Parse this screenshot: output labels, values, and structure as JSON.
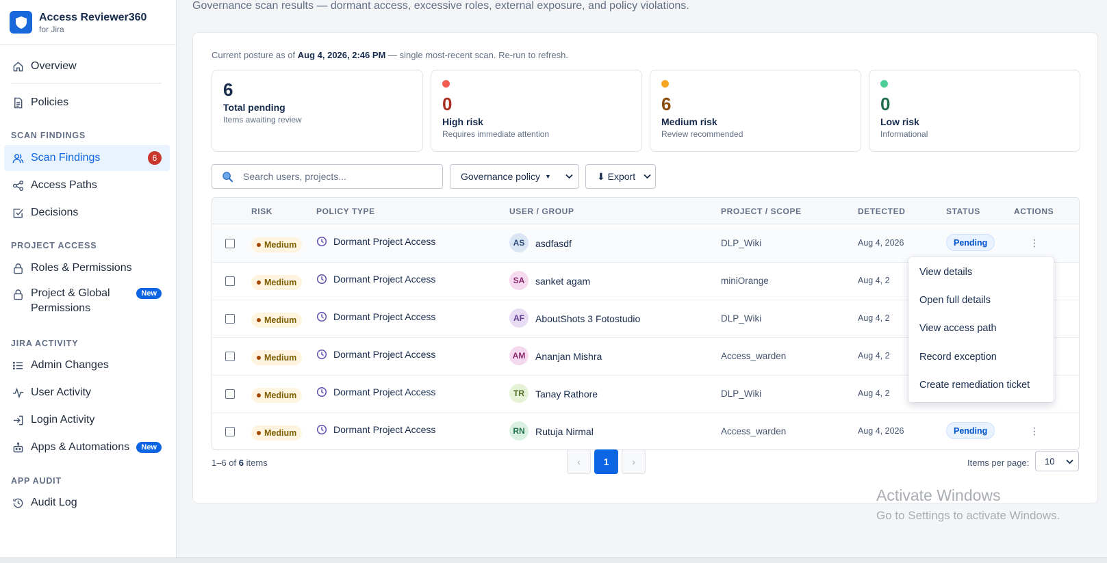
{
  "app": {
    "title": "Access Reviewer360",
    "subtitle": "for Jira"
  },
  "sidebar": {
    "overview": "Overview",
    "policies": "Policies",
    "sections": {
      "scan_findings": "SCAN FINDINGS",
      "project_access": "PROJECT ACCESS",
      "jira_activity": "JIRA ACTIVITY",
      "app_audit": "APP AUDIT"
    },
    "scan_findings": {
      "label": "Scan Findings",
      "count": "6"
    },
    "access_paths": "Access Paths",
    "decisions": "Decisions",
    "roles_permissions": "Roles & Permissions",
    "project_global_line1": "Project & Global",
    "project_global_line2": "Permissions",
    "new_badge": "New",
    "admin_changes": "Admin Changes",
    "user_activity": "User Activity",
    "login_activity": "Login Activity",
    "apps_automations": "Apps & Automations",
    "audit_log": "Audit Log"
  },
  "header": {
    "subtitle": "Governance scan results — dormant access, excessive roles, external exposure, and policy violations."
  },
  "posture": {
    "prefix": "Current posture as of",
    "timestamp": "Aug 4, 2026, 2:46 PM",
    "suffix": "— single most-recent scan. Re-run to refresh."
  },
  "stats": [
    {
      "value": "6",
      "label": "Total pending",
      "desc": "Items awaiting review",
      "color": "#172b4d",
      "dot": ""
    },
    {
      "value": "0",
      "label": "High risk",
      "desc": "Requires immediate attention",
      "color": "#ae2e24",
      "dot": "#f15b50"
    },
    {
      "value": "6",
      "label": "Medium risk",
      "desc": "Review recommended",
      "color": "#8a4b08",
      "dot": "#f5a623"
    },
    {
      "value": "0",
      "label": "Low risk",
      "desc": "Informational",
      "color": "#216e4e",
      "dot": "#4bce97"
    }
  ],
  "toolbar": {
    "search_placeholder": "Search users, projects...",
    "policy_select": "Governance policy",
    "export": "⬇ Export"
  },
  "table": {
    "headers": [
      "RISK",
      "POLICY TYPE",
      "USER / GROUP",
      "PROJECT / SCOPE",
      "DETECTED",
      "STATUS",
      "ACTIONS"
    ],
    "rows": [
      {
        "risk": "Medium",
        "policy": "Dormant Project Access",
        "initials": "AS",
        "user": "asdfasdf",
        "project": "DLP_Wiki",
        "detected": "Aug 4, 2026",
        "status": "Pending",
        "av_bg": "#dbe6f5",
        "av_fg": "#2d4d7a"
      },
      {
        "risk": "Medium",
        "policy": "Dormant Project Access",
        "initials": "SA",
        "user": "sanket agam",
        "project": "miniOrange",
        "detected": "Aug 4, 2",
        "status": "",
        "av_bg": "#f5d9ee",
        "av_fg": "#8a2a6d"
      },
      {
        "risk": "Medium",
        "policy": "Dormant Project Access",
        "initials": "AF",
        "user": "AboutShots 3 Fotostudio",
        "project": "DLP_Wiki",
        "detected": "Aug 4, 2",
        "status": "",
        "av_bg": "#e8dcf5",
        "av_fg": "#5e3a8c"
      },
      {
        "risk": "Medium",
        "policy": "Dormant Project Access",
        "initials": "AM",
        "user": "Ananjan Mishra",
        "project": "Access_warden",
        "detected": "Aug 4, 2",
        "status": "",
        "av_bg": "#f5d9ee",
        "av_fg": "#8a2a6d"
      },
      {
        "risk": "Medium",
        "policy": "Dormant Project Access",
        "initials": "TR",
        "user": "Tanay Rathore",
        "project": "DLP_Wiki",
        "detected": "Aug 4, 2",
        "status": "",
        "av_bg": "#e6f2d6",
        "av_fg": "#4a6b1f"
      },
      {
        "risk": "Medium",
        "policy": "Dormant Project Access",
        "initials": "RN",
        "user": "Rutuja Nirmal",
        "project": "Access_warden",
        "detected": "Aug 4, 2026",
        "status": "Pending",
        "av_bg": "#d9f0e2",
        "av_fg": "#216e4e"
      }
    ]
  },
  "pagination": {
    "range": "1–6 of",
    "total": "6",
    "items_word": "items",
    "prev": "‹",
    "current": "1",
    "next": "›",
    "per_page_label": "Items per page:",
    "per_page": "10"
  },
  "row_menu": {
    "items": [
      "View details",
      "Open full details",
      "View access path",
      "Record exception",
      "Create remediation ticket"
    ]
  },
  "watermark": {
    "line1": "Activate Windows",
    "line2": "Go to Settings to activate Windows."
  }
}
